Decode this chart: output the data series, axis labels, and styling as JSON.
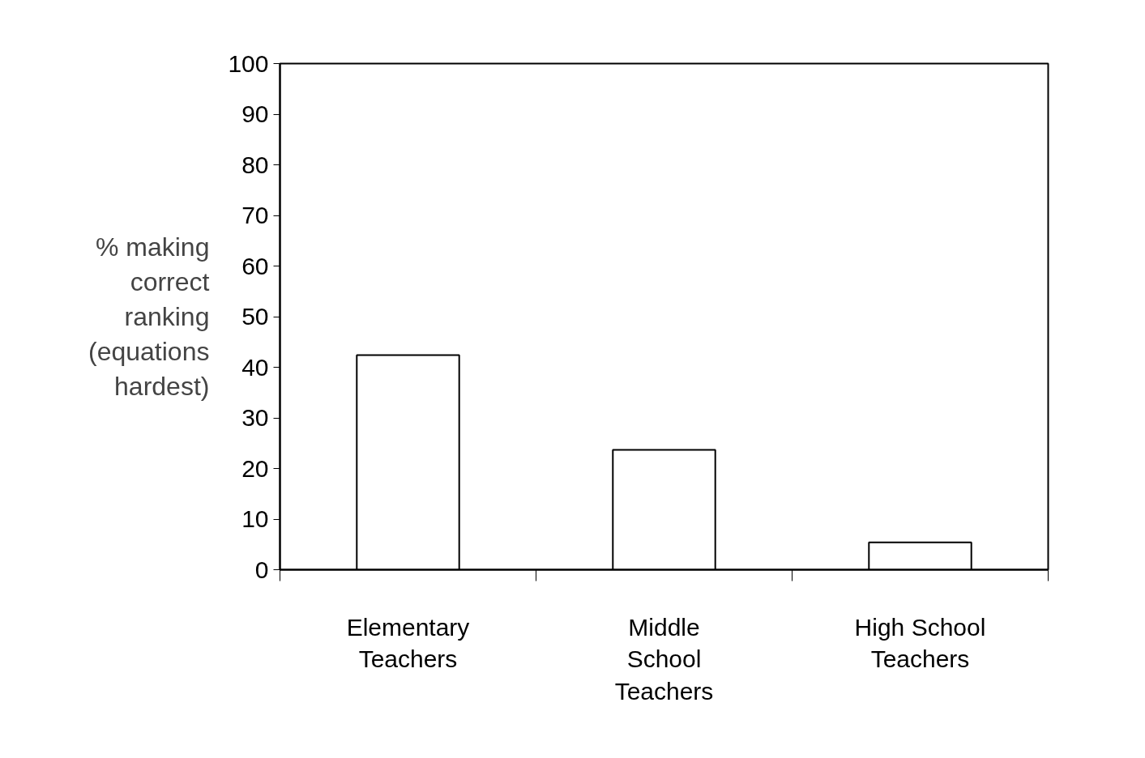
{
  "chart_data": {
    "type": "bar",
    "ylabel": "% making correct ranking (equations hardest)",
    "categories": [
      "Elementary\nTeachers",
      "Middle\nSchool\nTeachers",
      "High School\nTeachers"
    ],
    "values": [
      42.4,
      23.7,
      5.4
    ],
    "color": "#ffffff",
    "ylim": [
      0,
      100
    ],
    "yticks": [
      0,
      10,
      20,
      30,
      40,
      50,
      60,
      70,
      80,
      90,
      100
    ],
    "grid": false
  }
}
